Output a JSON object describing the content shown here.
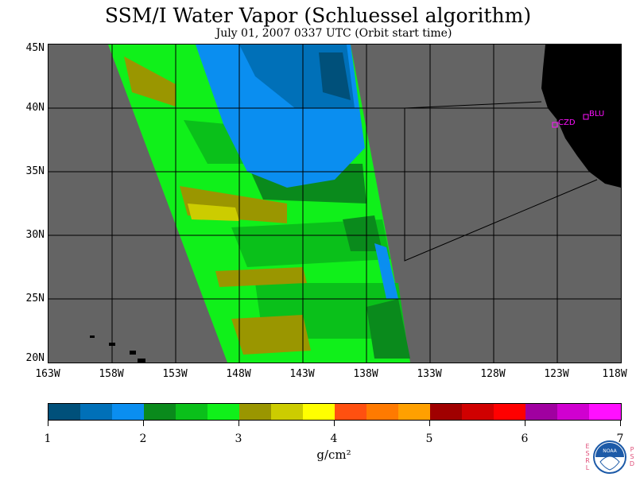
{
  "title": "SSM/I Water Vapor (Schluessel algorithm)",
  "subtitle": "July 01, 2007  0337 UTC  (Orbit start time)",
  "lat_labels": [
    "45N",
    "40N",
    "35N",
    "30N",
    "25N",
    "20N"
  ],
  "lon_labels": [
    "163W",
    "158W",
    "153W",
    "148W",
    "143W",
    "138W",
    "133W",
    "128W",
    "123W",
    "118W"
  ],
  "stations": [
    {
      "label": "CZD"
    },
    {
      "label": "BLU"
    }
  ],
  "colorbar": {
    "ticks": [
      "1",
      "2",
      "3",
      "4",
      "5",
      "6",
      "7"
    ],
    "unit": "g/cm²",
    "colors": [
      "#00507a",
      "#0070b8",
      "#0a8ef0",
      "#0a8a1c",
      "#0ac01a",
      "#10f01a",
      "#9a9600",
      "#cccc00",
      "#ffff00",
      "#ff5010",
      "#ff7a00",
      "#ffa000",
      "#a00000",
      "#d00000",
      "#ff0000",
      "#a000a0",
      "#d000d0",
      "#ff10ff"
    ]
  },
  "logo": {
    "left_letters": "ESRL",
    "right_letters": "PSD",
    "center_text": "NOAA"
  }
}
